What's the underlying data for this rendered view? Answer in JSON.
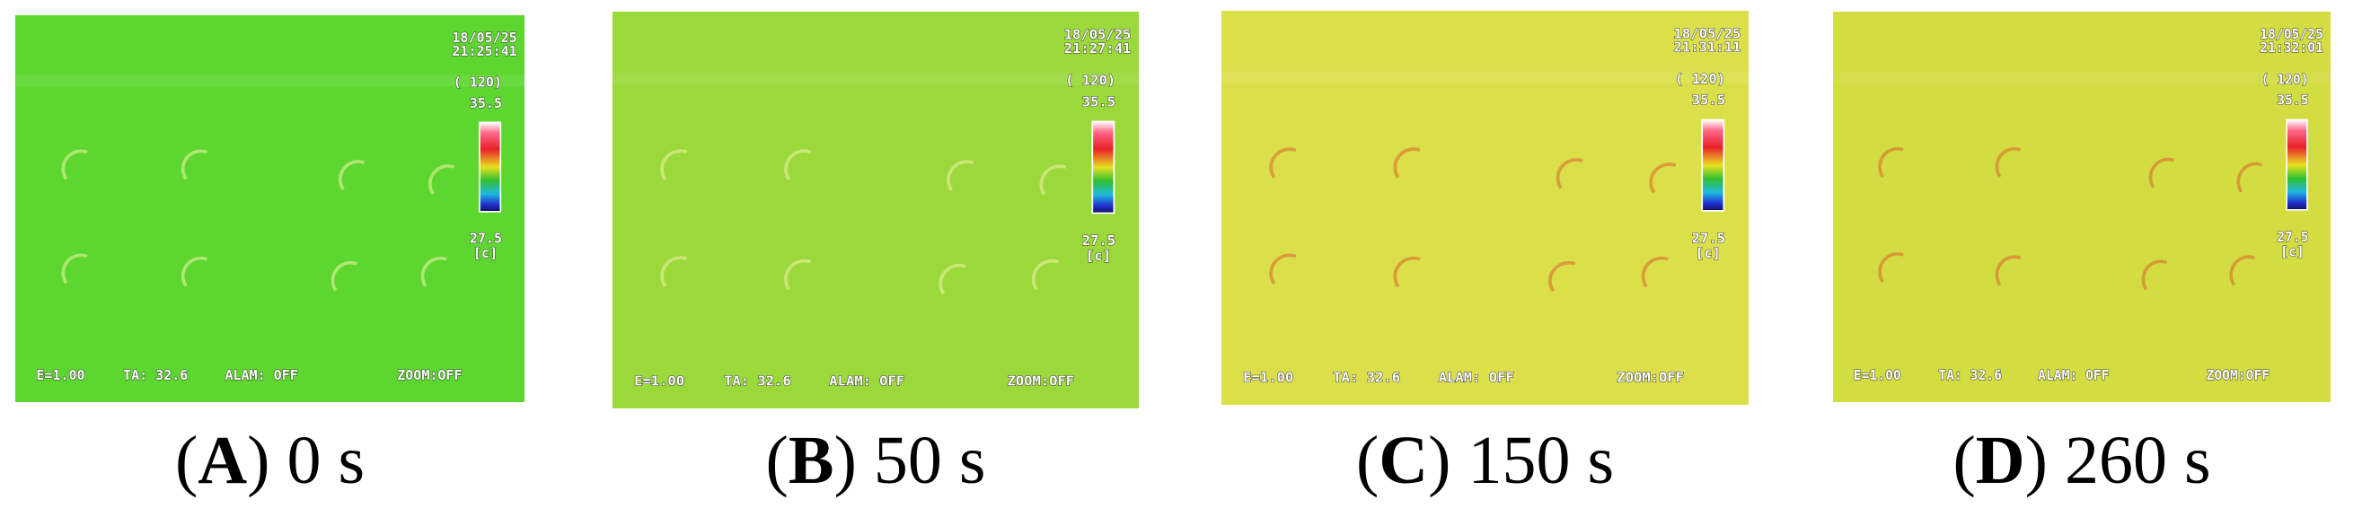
{
  "panels": [
    {
      "caption": {
        "pre": "(",
        "letter": "A",
        "post": ") 0 s"
      },
      "date": "18/05/25",
      "time": "21:25:41",
      "color": "#5dd72f"
    },
    {
      "caption": {
        "pre": "(",
        "letter": "B",
        "post": ") 50 s"
      },
      "date": "18/05/25",
      "time": "21:27:41",
      "color": "#9bd83a"
    },
    {
      "caption": {
        "pre": "(",
        "letter": "C",
        "post": ") 150 s"
      },
      "date": "18/05/25",
      "time": "21:31:11",
      "color": "#dbe04a"
    },
    {
      "caption": {
        "pre": "(",
        "letter": "D",
        "post": ") 260 s"
      },
      "date": "18/05/25",
      "time": "21:32:01",
      "color": "#d3dc40"
    }
  ],
  "overlay": {
    "range": "( 120)",
    "max": "35.5",
    "min": "27.5",
    "unit": "[c]",
    "status": [
      "E=1.00",
      "TA: 32.6",
      "ALAM: OFF",
      "ZOOM:OFF"
    ]
  }
}
